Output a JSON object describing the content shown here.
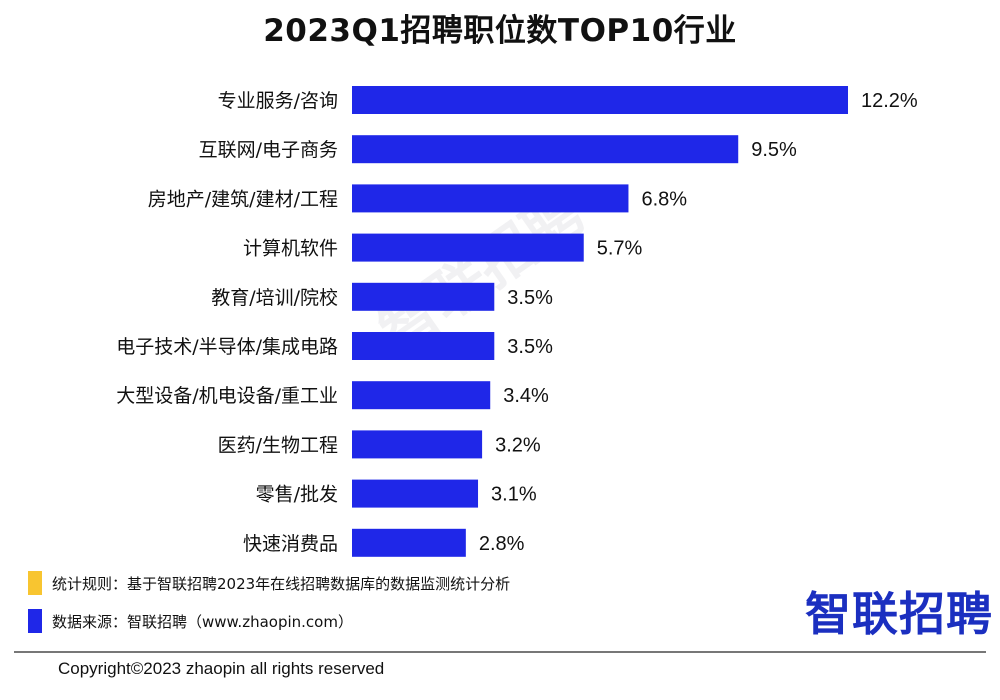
{
  "chart_data": {
    "type": "bar",
    "orientation": "horizontal",
    "title": "2023Q1招聘职位数TOP10行业",
    "categories": [
      "专业服务/咨询",
      "互联网/电子商务",
      "房地产/建筑/建材/工程",
      "计算机软件",
      "教育/培训/院校",
      "电子技术/半导体/集成电路",
      "大型设备/机电设备/重工业",
      "医药/生物工程",
      "零售/批发",
      "快速消费品"
    ],
    "values": [
      12.2,
      9.5,
      6.8,
      5.7,
      3.5,
      3.5,
      3.4,
      3.2,
      3.1,
      2.8
    ],
    "value_labels": [
      "12.2%",
      "9.5%",
      "6.8%",
      "5.7%",
      "3.5%",
      "3.5%",
      "3.4%",
      "3.2%",
      "3.1%",
      "2.8%"
    ],
    "unit": "%",
    "xlabel": "",
    "ylabel": "",
    "xlim": [
      0,
      12.2
    ],
    "grid": false
  },
  "colors": {
    "bar": "#1f27e8",
    "legend_rule": "#f8c530",
    "legend_source": "#1f27e8",
    "logo": "#1b2fc0"
  },
  "legend": {
    "rule": "统计规则：基于智联招聘2023年在线招聘数据库的数据监测统计分析",
    "source": "数据来源：智联招聘（www.zhaopin.com）"
  },
  "logo": "智联招聘",
  "watermark": "智联招聘",
  "copyright": "Copyright©2023 zhaopin all rights reserved"
}
